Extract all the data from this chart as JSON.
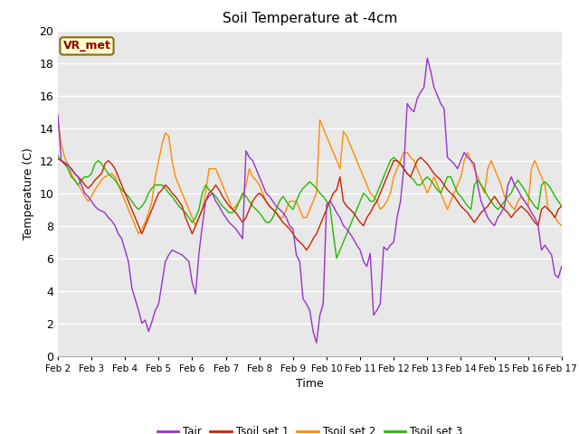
{
  "title": "Soil Temperature at -4cm",
  "xlabel": "Time",
  "ylabel": "Temperature (C)",
  "ylim": [
    0,
    20
  ],
  "fig_bg_color": "#ffffff",
  "plot_bg_color": "#e8e8e8",
  "grid_color": "#ffffff",
  "annotation_text": "VR_met",
  "annotation_color": "#8B0000",
  "annotation_bg": "#ffffcc",
  "annotation_border": "#8B6914",
  "xtick_labels": [
    "Feb 2",
    "Feb 3",
    "Feb 4",
    "Feb 5",
    "Feb 6",
    "Feb 7",
    "Feb 8",
    "Feb 9",
    "Feb 10",
    "Feb 11",
    "Feb 12",
    "Feb 13",
    "Feb 14",
    "Feb 15",
    "Feb 16",
    "Feb 17"
  ],
  "line_colors": {
    "Tair": "#9932CC",
    "Tsoil_set1": "#CC2200",
    "Tsoil_set2": "#FF8C00",
    "Tsoil_set3": "#22BB00"
  },
  "legend_labels": [
    "Tair",
    "Tsoil set 1",
    "Tsoil set 2",
    "Tsoil set 3"
  ],
  "Tair": [
    14.8,
    12.0,
    11.9,
    11.7,
    11.5,
    11.2,
    11.0,
    10.5,
    10.0,
    9.8,
    9.5,
    9.2,
    9.0,
    8.9,
    8.8,
    8.5,
    8.3,
    8.0,
    7.5,
    7.2,
    6.5,
    5.8,
    4.2,
    3.5,
    2.8,
    2.0,
    2.2,
    1.5,
    2.1,
    2.8,
    3.2,
    4.5,
    5.8,
    6.2,
    6.5,
    6.4,
    6.3,
    6.2,
    6.0,
    5.8,
    4.5,
    3.8,
    6.3,
    8.0,
    9.5,
    9.8,
    10.0,
    9.5,
    9.2,
    8.8,
    8.5,
    8.2,
    8.0,
    7.8,
    7.5,
    7.2,
    12.6,
    12.2,
    12.0,
    11.5,
    11.0,
    10.5,
    10.0,
    9.8,
    9.5,
    9.2,
    9.0,
    8.8,
    8.5,
    8.0,
    7.8,
    6.2,
    5.8,
    3.5,
    3.2,
    2.8,
    1.5,
    0.8,
    2.5,
    3.2,
    9.3,
    9.5,
    9.2,
    8.8,
    8.5,
    8.0,
    7.8,
    7.5,
    7.2,
    6.8,
    6.5,
    5.8,
    5.5,
    6.3,
    2.5,
    2.8,
    3.2,
    6.7,
    6.5,
    6.8,
    7.0,
    8.5,
    9.5,
    11.5,
    15.5,
    15.2,
    15.0,
    15.8,
    16.2,
    16.5,
    18.3,
    17.5,
    16.5,
    16.0,
    15.5,
    15.2,
    12.2,
    12.0,
    11.8,
    11.5,
    12.0,
    12.5,
    12.2,
    12.0,
    11.8,
    10.5,
    9.5,
    9.0,
    8.5,
    8.2,
    8.0,
    8.5,
    8.8,
    9.2,
    10.5,
    11.0,
    10.5,
    10.2,
    9.8,
    9.5,
    9.2,
    8.8,
    8.5,
    8.0,
    6.5,
    6.8,
    6.5,
    6.2,
    5.0,
    4.8,
    5.5
  ],
  "Tsoil_set1": [
    12.1,
    12.0,
    11.8,
    11.7,
    11.5,
    11.2,
    11.0,
    10.8,
    10.5,
    10.3,
    10.5,
    10.8,
    11.0,
    11.2,
    11.8,
    12.0,
    11.8,
    11.5,
    11.0,
    10.5,
    10.0,
    9.5,
    9.0,
    8.5,
    8.0,
    7.5,
    8.0,
    8.5,
    9.0,
    9.5,
    10.0,
    10.2,
    10.5,
    10.3,
    10.0,
    9.8,
    9.5,
    9.2,
    8.5,
    8.0,
    7.5,
    8.0,
    8.5,
    9.0,
    9.5,
    10.0,
    10.2,
    10.5,
    10.2,
    9.8,
    9.5,
    9.2,
    9.0,
    8.8,
    8.5,
    8.2,
    8.5,
    9.0,
    9.5,
    9.8,
    10.0,
    9.8,
    9.5,
    9.2,
    9.0,
    8.8,
    8.5,
    8.2,
    8.0,
    7.8,
    7.5,
    7.2,
    7.0,
    6.8,
    6.5,
    6.8,
    7.2,
    7.5,
    8.0,
    8.5,
    9.0,
    9.5,
    10.0,
    10.2,
    11.0,
    9.5,
    9.2,
    9.0,
    8.8,
    8.5,
    8.2,
    8.0,
    8.5,
    8.8,
    9.2,
    9.5,
    10.0,
    10.5,
    11.0,
    11.5,
    12.0,
    12.0,
    11.8,
    11.5,
    11.2,
    11.0,
    11.5,
    12.0,
    12.2,
    12.0,
    11.8,
    11.5,
    11.2,
    11.0,
    10.8,
    10.5,
    10.2,
    10.0,
    9.8,
    9.5,
    9.2,
    9.0,
    8.8,
    8.5,
    8.2,
    8.5,
    8.8,
    9.0,
    9.2,
    9.5,
    9.8,
    9.5,
    9.2,
    9.0,
    8.8,
    8.5,
    8.8,
    9.0,
    9.2,
    9.0,
    8.8,
    8.5,
    8.2,
    8.0,
    9.0,
    9.2,
    9.0,
    8.8,
    8.5,
    9.0,
    9.2
  ],
  "Tsoil_set2": [
    14.5,
    13.0,
    12.2,
    11.8,
    11.2,
    10.8,
    10.5,
    10.2,
    9.8,
    9.5,
    9.8,
    10.2,
    10.5,
    10.8,
    11.0,
    11.1,
    11.2,
    11.0,
    10.5,
    10.0,
    9.5,
    9.0,
    8.5,
    8.0,
    7.5,
    7.8,
    8.2,
    8.8,
    9.5,
    11.0,
    12.0,
    13.0,
    13.7,
    13.5,
    12.0,
    11.0,
    10.5,
    10.0,
    9.5,
    9.0,
    8.5,
    8.0,
    8.5,
    9.0,
    10.0,
    11.5,
    11.5,
    11.5,
    11.0,
    10.5,
    10.0,
    9.5,
    9.0,
    9.2,
    9.5,
    9.8,
    10.5,
    11.5,
    11.0,
    10.8,
    10.5,
    10.0,
    9.5,
    9.2,
    9.0,
    8.8,
    8.5,
    8.5,
    9.0,
    9.5,
    9.5,
    9.5,
    9.0,
    8.5,
    8.5,
    9.0,
    9.5,
    10.0,
    14.5,
    14.0,
    13.5,
    13.0,
    12.5,
    12.0,
    11.5,
    13.8,
    13.5,
    13.0,
    12.5,
    12.0,
    11.5,
    11.0,
    10.5,
    10.0,
    9.8,
    9.5,
    9.0,
    9.2,
    9.5,
    10.0,
    11.0,
    11.5,
    12.0,
    12.5,
    12.5,
    12.2,
    12.0,
    11.5,
    11.0,
    10.5,
    10.0,
    10.5,
    11.0,
    10.5,
    10.0,
    9.5,
    9.0,
    9.5,
    10.0,
    10.5,
    11.0,
    12.0,
    12.5,
    12.0,
    11.5,
    11.0,
    10.5,
    10.0,
    11.5,
    12.0,
    11.5,
    11.0,
    10.5,
    9.8,
    9.5,
    9.2,
    9.0,
    9.5,
    9.8,
    9.5,
    9.2,
    11.5,
    12.0,
    11.5,
    11.0,
    10.5,
    9.0,
    8.8,
    8.5,
    8.2,
    8.0
  ],
  "Tsoil_set3": [
    12.3,
    12.0,
    11.8,
    11.5,
    11.0,
    10.8,
    10.5,
    10.8,
    11.0,
    11.0,
    11.2,
    11.8,
    12.0,
    11.8,
    11.5,
    11.2,
    11.0,
    10.8,
    10.5,
    10.2,
    10.0,
    9.8,
    9.5,
    9.2,
    9.0,
    9.2,
    9.5,
    10.0,
    10.3,
    10.5,
    10.5,
    10.5,
    10.3,
    10.0,
    9.8,
    9.5,
    9.2,
    9.0,
    8.8,
    8.5,
    8.2,
    8.5,
    9.0,
    10.0,
    10.5,
    10.2,
    10.0,
    9.8,
    9.5,
    9.2,
    9.0,
    8.8,
    8.8,
    9.0,
    9.5,
    10.0,
    9.8,
    9.5,
    9.2,
    9.0,
    8.8,
    8.5,
    8.2,
    8.2,
    8.5,
    9.0,
    9.5,
    9.8,
    9.5,
    9.2,
    9.0,
    9.5,
    10.0,
    10.3,
    10.5,
    10.7,
    10.5,
    10.3,
    10.0,
    9.8,
    9.5,
    9.2,
    7.5,
    6.0,
    6.5,
    7.0,
    7.5,
    8.0,
    8.5,
    9.0,
    9.5,
    10.0,
    9.8,
    9.5,
    9.5,
    10.0,
    10.5,
    11.0,
    11.5,
    12.0,
    12.2,
    12.0,
    11.8,
    11.5,
    11.2,
    11.0,
    10.8,
    10.5,
    10.5,
    10.8,
    11.0,
    10.8,
    10.5,
    10.2,
    10.0,
    10.5,
    11.0,
    11.0,
    10.5,
    10.0,
    9.8,
    9.5,
    9.2,
    9.0,
    10.5,
    10.8,
    10.5,
    10.2,
    9.8,
    9.5,
    9.2,
    9.0,
    9.2,
    9.5,
    9.8,
    10.0,
    10.5,
    10.8,
    10.5,
    10.2,
    9.8,
    9.5,
    9.2,
    9.0,
    10.5,
    10.7,
    10.5,
    10.2,
    9.8,
    9.5,
    9.2
  ]
}
